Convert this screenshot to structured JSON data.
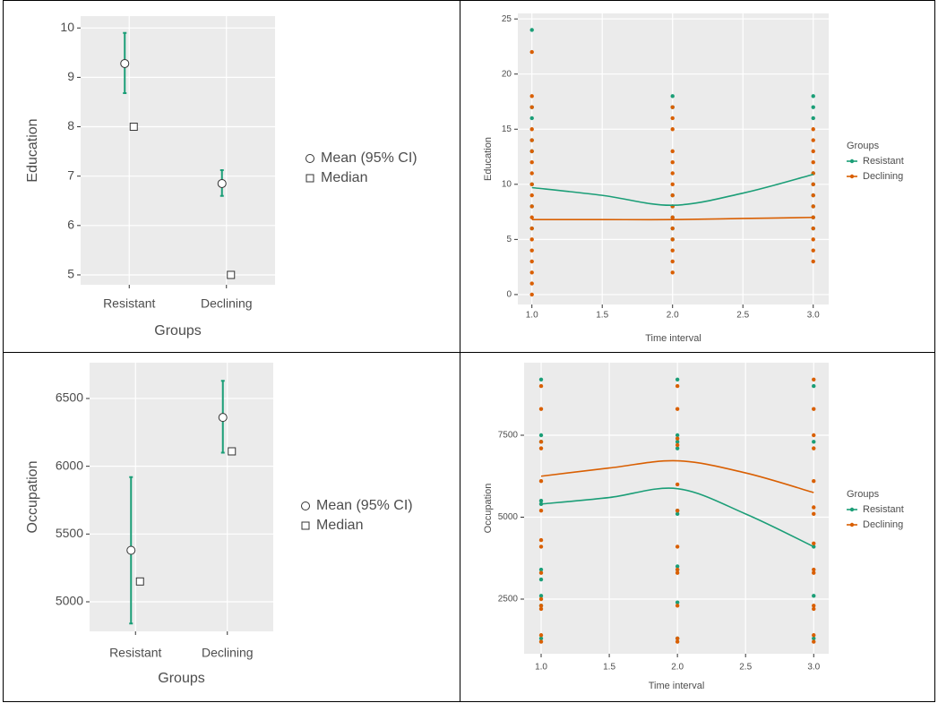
{
  "chart_data": [
    {
      "type": "point-range",
      "ylabel": "Education",
      "xlabel": "Groups",
      "categories": [
        "Resistant",
        "Declining"
      ],
      "ylim": [
        4.8,
        10.24
      ],
      "yticks": [
        5,
        6,
        7,
        8,
        9,
        10
      ],
      "grid": true,
      "series": [
        {
          "name": "Mean (95% CI)",
          "color": "#1b9e77",
          "marker": "circle",
          "values": [
            9.28,
            6.85
          ],
          "lower": [
            8.68,
            6.6
          ],
          "upper": [
            9.9,
            7.12
          ]
        },
        {
          "name": "Median",
          "color": "#333333",
          "marker": "square",
          "values": [
            8,
            5
          ]
        }
      ]
    },
    {
      "type": "scatter",
      "ylabel": "Education",
      "xlabel": "Time interval",
      "legend_title": "Groups",
      "xlim": [
        0.9,
        3.11
      ],
      "xticks": [
        {
          "value": 1,
          "label": "1.0"
        },
        1.5,
        {
          "value": 2,
          "label": "2.0"
        },
        2.5,
        {
          "value": 3,
          "label": "3.0"
        }
      ],
      "ylim": [
        -0.9,
        25.5
      ],
      "yticks": [
        0,
        5,
        10,
        15,
        20,
        25
      ],
      "grid": true,
      "series": [
        {
          "name": "Resistant",
          "color": "#1b9e77",
          "x": [
            1,
            1,
            1,
            1,
            1,
            1,
            1,
            1,
            2,
            2,
            2,
            2,
            2,
            2,
            2,
            3,
            3,
            3,
            3,
            3,
            3,
            3,
            3,
            3
          ],
          "values": [
            24,
            17,
            16,
            14,
            13,
            10,
            8,
            6,
            18,
            17,
            9,
            8,
            7,
            6,
            5,
            18,
            17,
            16,
            11,
            10,
            9,
            8,
            7,
            6
          ],
          "smooth": {
            "x": [
              1,
              1.5,
              2,
              2.5,
              3
            ],
            "values": [
              9.7,
              9.0,
              8.1,
              9.2,
              10.9
            ]
          }
        },
        {
          "name": "Declining",
          "color": "#d95f02",
          "x": [
            1,
            1,
            1,
            1,
            1,
            1,
            1,
            1,
            1,
            1,
            1,
            1,
            1,
            1,
            1,
            1,
            1,
            1,
            1,
            2,
            2,
            2,
            2,
            2,
            2,
            2,
            2,
            2,
            2,
            2,
            2,
            2,
            2,
            2,
            3,
            3,
            3,
            3,
            3,
            3,
            3,
            3,
            3,
            3,
            3,
            3,
            3
          ],
          "values": [
            22,
            18,
            17,
            15,
            14,
            13,
            12,
            11,
            10,
            9,
            8,
            7,
            6,
            5,
            4,
            3,
            2,
            1,
            0,
            17,
            16,
            15,
            13,
            12,
            11,
            10,
            9,
            8,
            7,
            6,
            5,
            4,
            3,
            2,
            15,
            14,
            13,
            12,
            11,
            10,
            9,
            8,
            7,
            6,
            5,
            4,
            3
          ],
          "smooth": {
            "x": [
              1,
              1.5,
              2,
              2.5,
              3
            ],
            "values": [
              6.8,
              6.8,
              6.8,
              6.9,
              7.0
            ]
          }
        }
      ]
    },
    {
      "type": "point-range",
      "ylabel": "Occupation",
      "xlabel": "Groups",
      "categories": [
        "Resistant",
        "Declining"
      ],
      "ylim": [
        4782,
        6764
      ],
      "yticks": [
        5000,
        5500,
        6000,
        6500
      ],
      "grid": true,
      "series": [
        {
          "name": "Mean (95% CI)",
          "color": "#1b9e77",
          "marker": "circle",
          "values": [
            5380,
            6360
          ],
          "lower": [
            4840,
            6100
          ],
          "upper": [
            5920,
            6630
          ]
        },
        {
          "name": "Median",
          "color": "#333333",
          "marker": "square",
          "values": [
            5150,
            6110
          ]
        }
      ]
    },
    {
      "type": "scatter",
      "ylabel": "Occupation",
      "xlabel": "Time interval",
      "legend_title": "Groups",
      "xlim": [
        0.875,
        3.11
      ],
      "xticks": [
        {
          "value": 1,
          "label": "1.0"
        },
        1.5,
        {
          "value": 2,
          "label": "2.0"
        },
        2.5,
        {
          "value": 3,
          "label": "3.0"
        }
      ],
      "ylim": [
        833,
        9713
      ],
      "yticks": [
        2500,
        5000,
        7500
      ],
      "grid": true,
      "series": [
        {
          "name": "Resistant",
          "color": "#1b9e77",
          "x": [
            1,
            1,
            1,
            1,
            1,
            1,
            1,
            1,
            1,
            1,
            2,
            2,
            2,
            2,
            2,
            2,
            2,
            2,
            2,
            2,
            3,
            3,
            3,
            3,
            3
          ],
          "values": [
            9200,
            7500,
            7300,
            5500,
            5400,
            3400,
            3100,
            2600,
            2300,
            1300,
            9200,
            7500,
            7300,
            7100,
            5200,
            5100,
            3500,
            3400,
            2400,
            1300,
            9000,
            7300,
            4100,
            2600,
            1300
          ],
          "smooth": {
            "x": [
              1,
              1.5,
              2,
              2.5,
              3
            ],
            "values": [
              5400,
              5600,
              5870,
              5100,
              4100
            ]
          }
        },
        {
          "name": "Declining",
          "color": "#d95f02",
          "x": [
            1,
            1,
            1,
            1,
            1,
            1,
            1,
            1,
            1,
            1,
            1,
            1,
            1,
            1,
            2,
            2,
            2,
            2,
            2,
            2,
            2,
            2,
            2,
            2,
            2,
            2,
            3,
            3,
            3,
            3,
            3,
            3,
            3,
            3,
            3,
            3,
            3,
            3,
            3,
            3
          ],
          "values": [
            9000,
            8300,
            7300,
            7100,
            6100,
            5200,
            4300,
            4100,
            3300,
            2500,
            2300,
            2200,
            1400,
            1200,
            9000,
            8300,
            7400,
            7200,
            6000,
            5200,
            4100,
            3400,
            3300,
            2300,
            1300,
            1200,
            9200,
            8300,
            7500,
            7100,
            6100,
            5300,
            5100,
            4200,
            3400,
            3300,
            2300,
            2200,
            1400,
            1200
          ],
          "smooth": {
            "x": [
              1,
              1.5,
              2,
              2.5,
              3
            ],
            "values": [
              6250,
              6500,
              6720,
              6350,
              5750
            ]
          }
        }
      ]
    }
  ]
}
